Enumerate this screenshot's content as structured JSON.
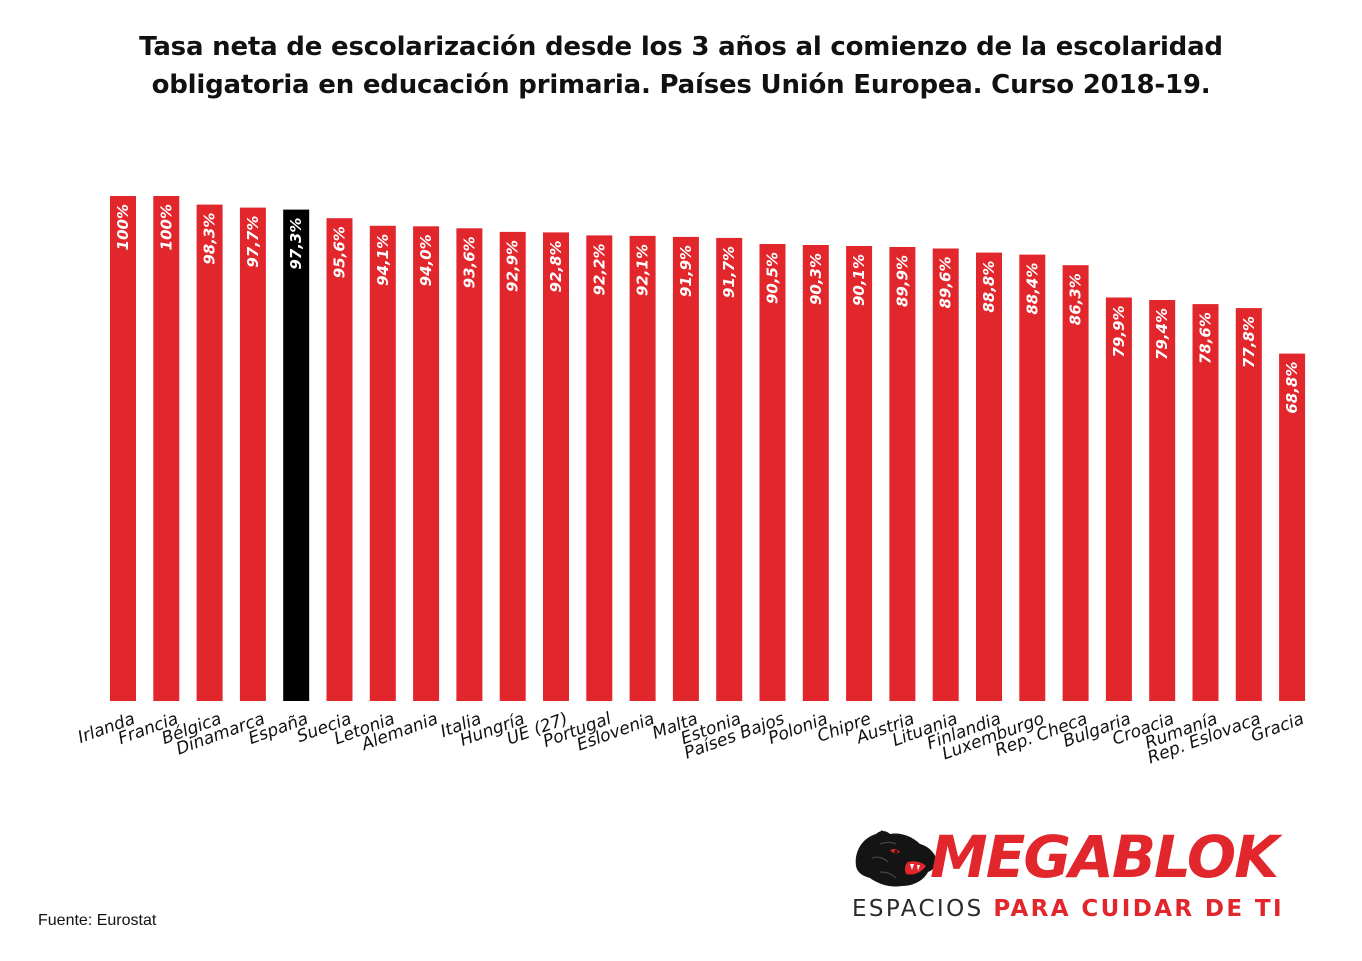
{
  "title_lines": [
    "Tasa neta de escolarización desde los 3 años al comienzo de la escolaridad",
    "obligatoria en educación primaria. Países Unión Europea. Curso 2018-19."
  ],
  "source": "Fuente: Eurostat",
  "brand": {
    "name": "MEGABLOK",
    "tagline_plain": "ESPACIOS",
    "tagline_accent": "PARA CUIDAR DE TI",
    "logo_icon": "panther-head-icon"
  },
  "colors": {
    "bar": "#e1262c",
    "highlight": "#000000",
    "label_text": "#ffffff"
  },
  "chart_data": {
    "type": "bar",
    "title": "Tasa neta de escolarización desde los 3 años al comienzo de la escolaridad obligatoria en educación primaria. Países Unión Europea. Curso 2018-19.",
    "xlabel": "",
    "ylabel": "",
    "ylim": [
      0,
      100
    ],
    "grid": false,
    "legend": "none",
    "highlight_category": "España",
    "categories": [
      "Irlanda",
      "Francia",
      "Bélgica",
      "Dinamarca",
      "España",
      "Suecia",
      "Letonia",
      "Alemania",
      "Italia",
      "Hungría",
      "UE (27)",
      "Portugal",
      "Eslovenia",
      "Malta",
      "Estonia",
      "Países Bajos",
      "Polonia",
      "Chipre",
      "Austria",
      "Lituania",
      "Finlandia",
      "Luxemburgo",
      "Rep. Checa",
      "Bulgaria",
      "Croacia",
      "Rumanía",
      "Rep. Eslovaca",
      "Gracia"
    ],
    "values": [
      100,
      100,
      98.3,
      97.7,
      97.3,
      95.6,
      94.1,
      94.0,
      93.6,
      92.9,
      92.8,
      92.2,
      92.1,
      91.9,
      91.7,
      90.5,
      90.3,
      90.1,
      89.9,
      89.6,
      88.8,
      88.4,
      86.3,
      79.9,
      79.4,
      78.6,
      77.8,
      68.8
    ],
    "data_labels": [
      "100%",
      "100%",
      "98,3%",
      "97,7%",
      "97,3%",
      "95,6%",
      "94,1%",
      "94,0%",
      "93,6%",
      "92,9%",
      "92,8%",
      "92,2%",
      "92,1%",
      "91,9%",
      "91,7%",
      "90,5%",
      "90,3%",
      "90,1%",
      "89,9%",
      "89,6%",
      "88,8%",
      "88,4%",
      "86,3%",
      "79,9%",
      "79,4%",
      "78,6%",
      "77,8%",
      "68,8%"
    ]
  }
}
